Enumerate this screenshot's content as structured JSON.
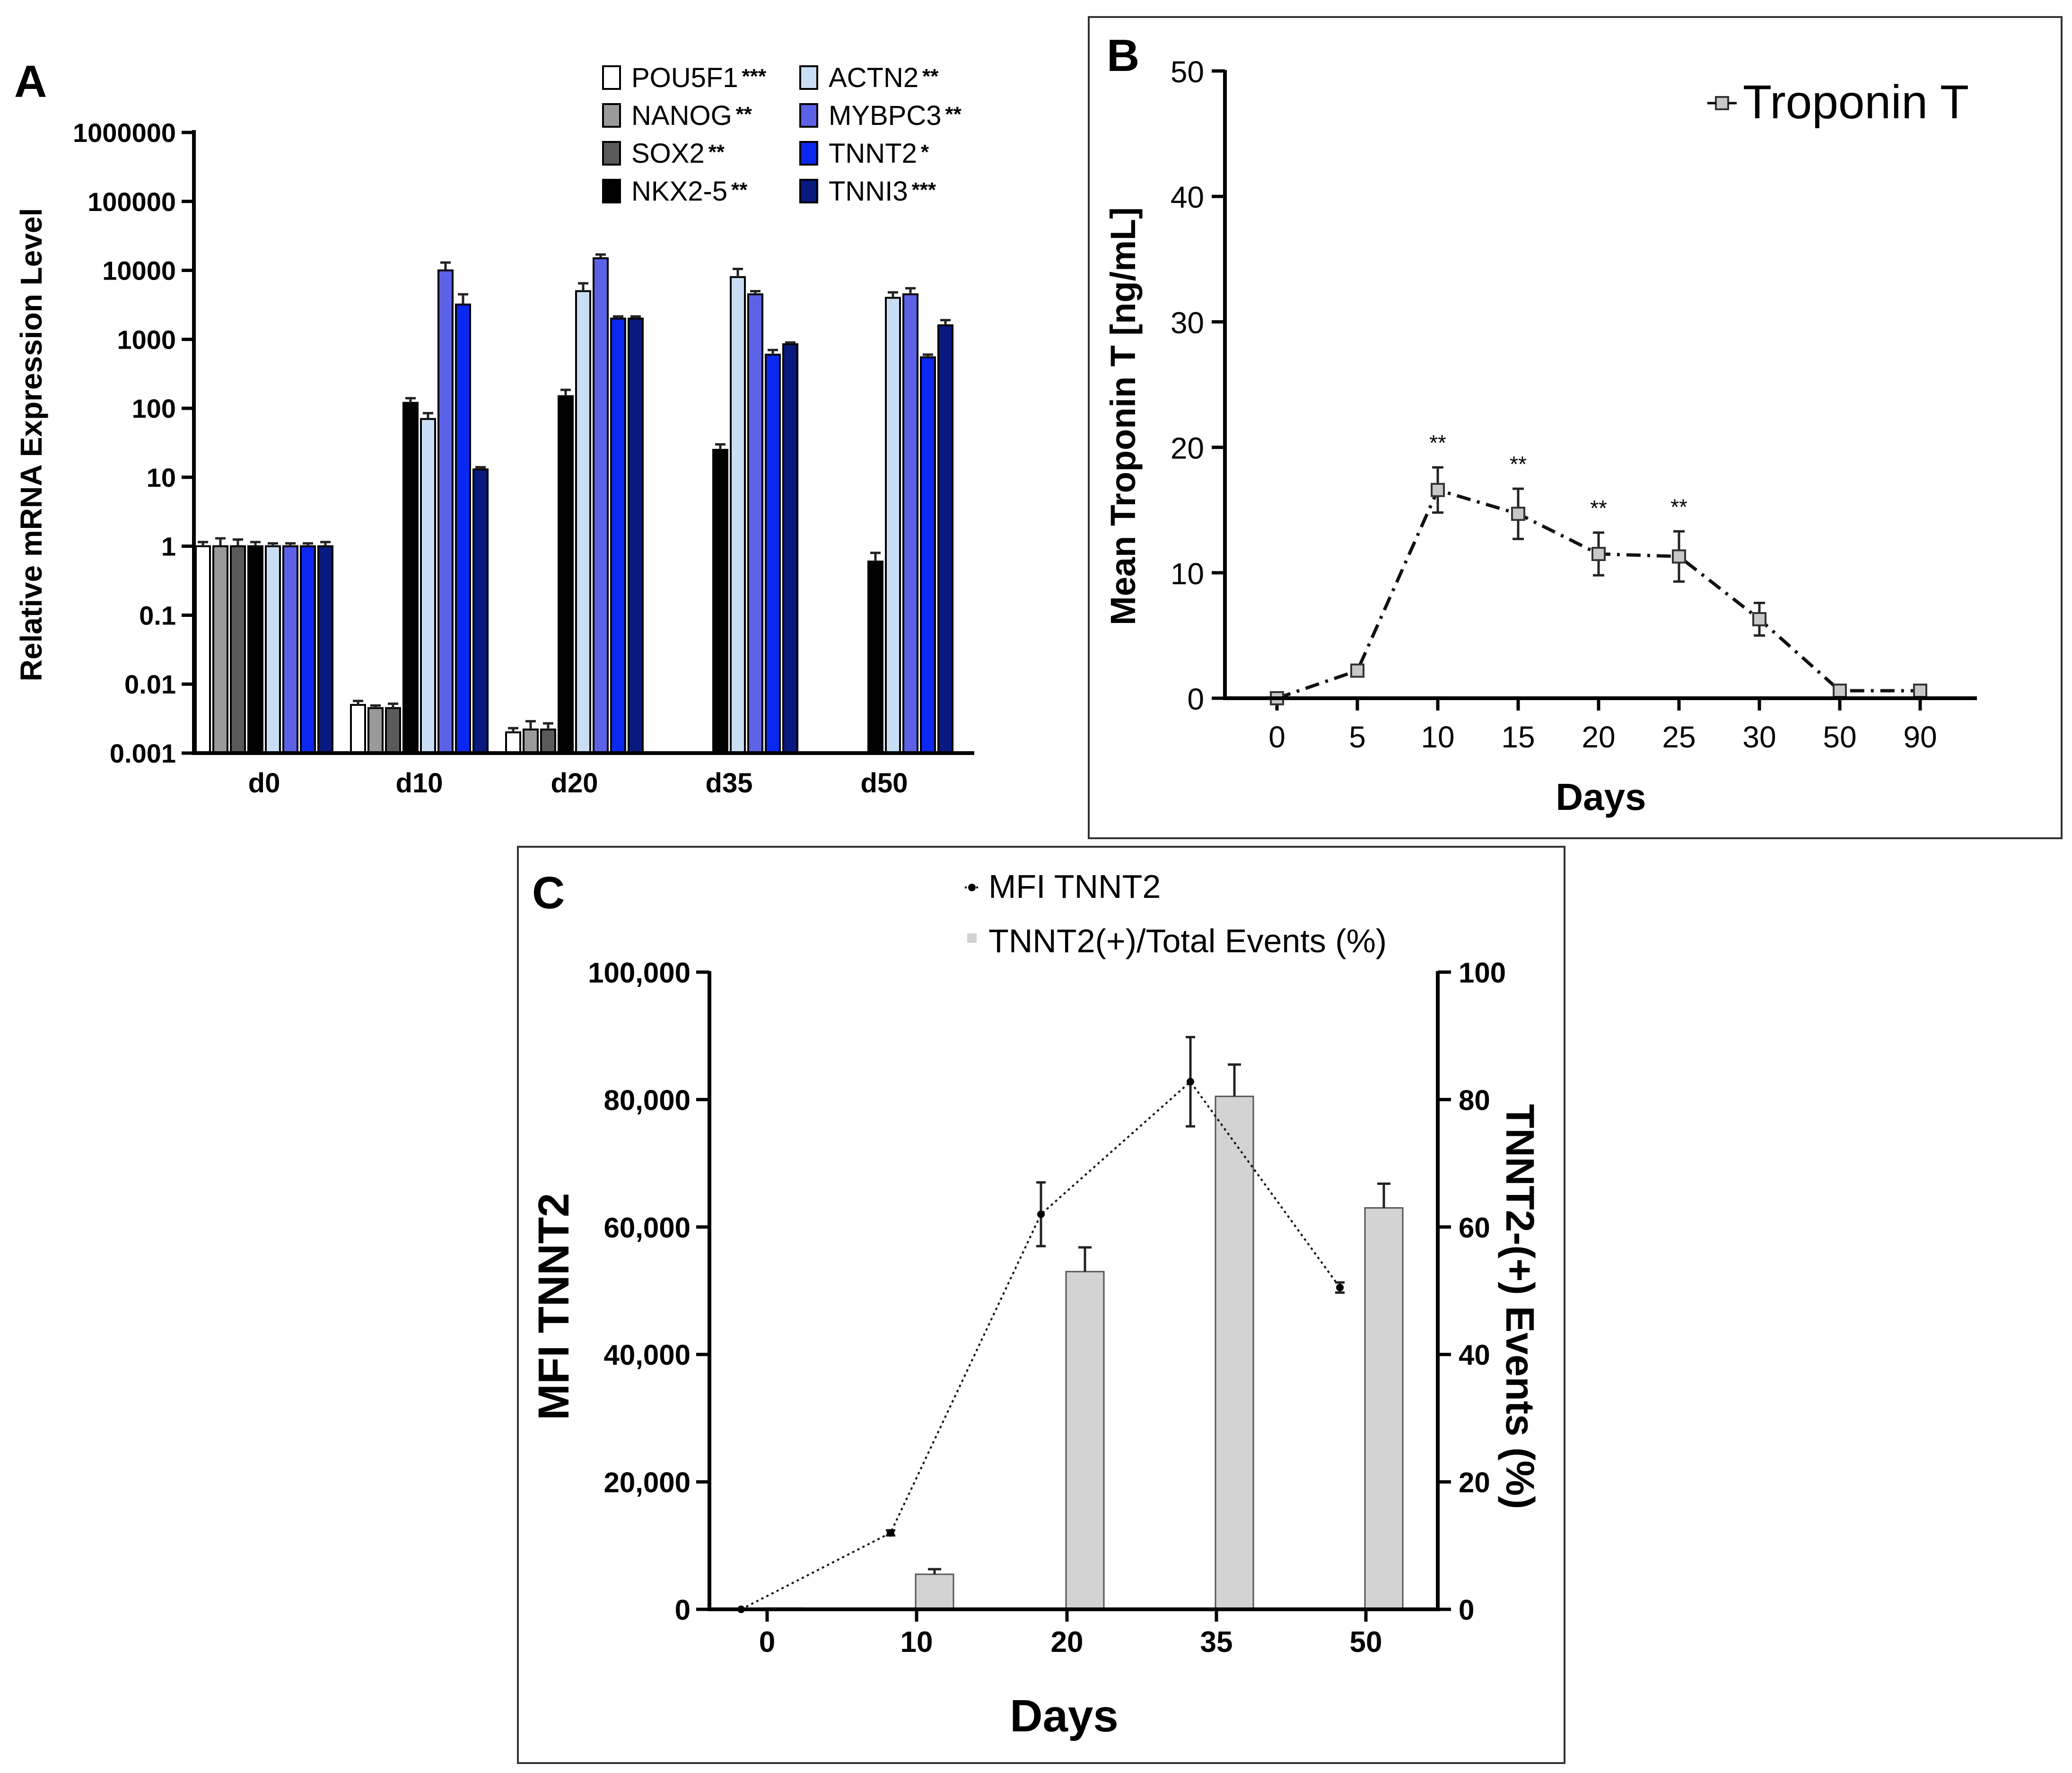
{
  "colors": {
    "POU5F1": "#ffffff",
    "NANOG": "#9a9a9a",
    "SOX2": "#5a5a5a",
    "NKX2-5": "#000000",
    "ACTN2": "#c9def4",
    "MYBPC3": "#5c62e6",
    "TNNT2": "#0a28f0",
    "TNNI3": "#081a80",
    "bars_c": "#d3d3d3"
  },
  "chart_data": [
    {
      "panel": "A",
      "type": "bar",
      "panel_label": "A",
      "ylabel": "Relative mRNA Expression Level",
      "yscale": "log",
      "ylim": [
        0.001,
        1000000
      ],
      "yticks": [
        "0.001",
        "0.01",
        "0.1",
        "1",
        "10",
        "100",
        "1000",
        "10000",
        "100000",
        "1000000"
      ],
      "categories": [
        "d0",
        "d10",
        "d20",
        "d35",
        "d50"
      ],
      "legend": [
        {
          "name": "POU5F1",
          "sig": "***"
        },
        {
          "name": "NANOG",
          "sig": "**"
        },
        {
          "name": "SOX2",
          "sig": "**"
        },
        {
          "name": "NKX2-5",
          "sig": "**"
        },
        {
          "name": "ACTN2",
          "sig": "**"
        },
        {
          "name": "MYBPC3",
          "sig": "**"
        },
        {
          "name": "TNNT2",
          "sig": "*"
        },
        {
          "name": "TNNI3",
          "sig": "***"
        }
      ],
      "series": [
        {
          "name": "POU5F1",
          "values": [
            1,
            0.005,
            0.002,
            null,
            null
          ],
          "err": [
            0.15,
            0.0007,
            0.0003,
            null,
            null
          ]
        },
        {
          "name": "NANOG",
          "values": [
            1,
            0.0045,
            0.0022,
            null,
            null
          ],
          "err": [
            0.3,
            0.0004,
            0.0007,
            null,
            null
          ]
        },
        {
          "name": "SOX2",
          "values": [
            1,
            0.0045,
            0.0022,
            null,
            null
          ],
          "err": [
            0.25,
            0.0007,
            0.0005,
            null,
            null
          ]
        },
        {
          "name": "NKX2-5",
          "values": [
            1,
            120,
            150,
            25,
            0.6
          ],
          "err": [
            0.15,
            20,
            35,
            5,
            0.2
          ]
        },
        {
          "name": "ACTN2",
          "values": [
            1,
            70,
            5000,
            8000,
            4000
          ],
          "err": [
            0.1,
            15,
            1500,
            2500,
            800
          ]
        },
        {
          "name": "MYBPC3",
          "values": [
            1,
            10000,
            15000,
            4500,
            4500
          ],
          "err": [
            0.1,
            3000,
            2000,
            500,
            1000
          ]
        },
        {
          "name": "TNNT2",
          "values": [
            1,
            3200,
            2000,
            600,
            550
          ],
          "err": [
            0.1,
            1300,
            150,
            100,
            50
          ]
        },
        {
          "name": "TNNI3",
          "values": [
            1,
            13,
            2000,
            850,
            1600
          ],
          "err": [
            0.15,
            1,
            150,
            50,
            300
          ]
        }
      ]
    },
    {
      "panel": "B",
      "type": "line",
      "panel_label": "B",
      "xlabel": "Days",
      "ylabel": "Mean Troponin T [ng/mL]",
      "ylim": [
        0,
        50
      ],
      "yticks": [
        "0",
        "10",
        "20",
        "30",
        "40",
        "50"
      ],
      "categories": [
        "0",
        "5",
        "10",
        "15",
        "20",
        "25",
        "30",
        "50",
        "90"
      ],
      "series": [
        {
          "name": "Troponin T",
          "values": [
            0,
            2.2,
            16.6,
            14.7,
            11.5,
            11.3,
            6.3,
            0.6,
            0.6
          ],
          "err": [
            0,
            0.4,
            1.8,
            2.0,
            1.7,
            2.0,
            1.3,
            0.2,
            0.2
          ],
          "sig": [
            "",
            "",
            "**",
            "**",
            "**",
            "**",
            "",
            "",
            ""
          ]
        }
      ]
    },
    {
      "panel": "C",
      "type": "bar",
      "panel_label": "C",
      "xlabel": "Days",
      "ylabel_left": "MFI TNNT2",
      "ylabel_right": "TNNT2-(+) Events (%)",
      "ylim_left": [
        0,
        100000
      ],
      "ylim_right": [
        0,
        100
      ],
      "yticks_left": [
        "0",
        "20,000",
        "40,000",
        "60,000",
        "80,000",
        "100,000"
      ],
      "yticks_right": [
        "0",
        "20",
        "40",
        "60",
        "80",
        "100"
      ],
      "categories": [
        "0",
        "10",
        "20",
        "35",
        "50"
      ],
      "series": [
        {
          "name": "MFI TNNT2",
          "kind": "line",
          "axis": "left",
          "values": [
            0,
            12000,
            62000,
            82800,
            50500
          ],
          "err": [
            0,
            400,
            5000,
            7000,
            800
          ]
        },
        {
          "name": "TNNT2(+)/Total Events (%)",
          "kind": "bar",
          "axis": "right",
          "values": [
            0.2,
            5.5,
            53,
            80.5,
            63
          ],
          "err": [
            0,
            0.8,
            3.8,
            5,
            3.8
          ]
        }
      ]
    }
  ]
}
